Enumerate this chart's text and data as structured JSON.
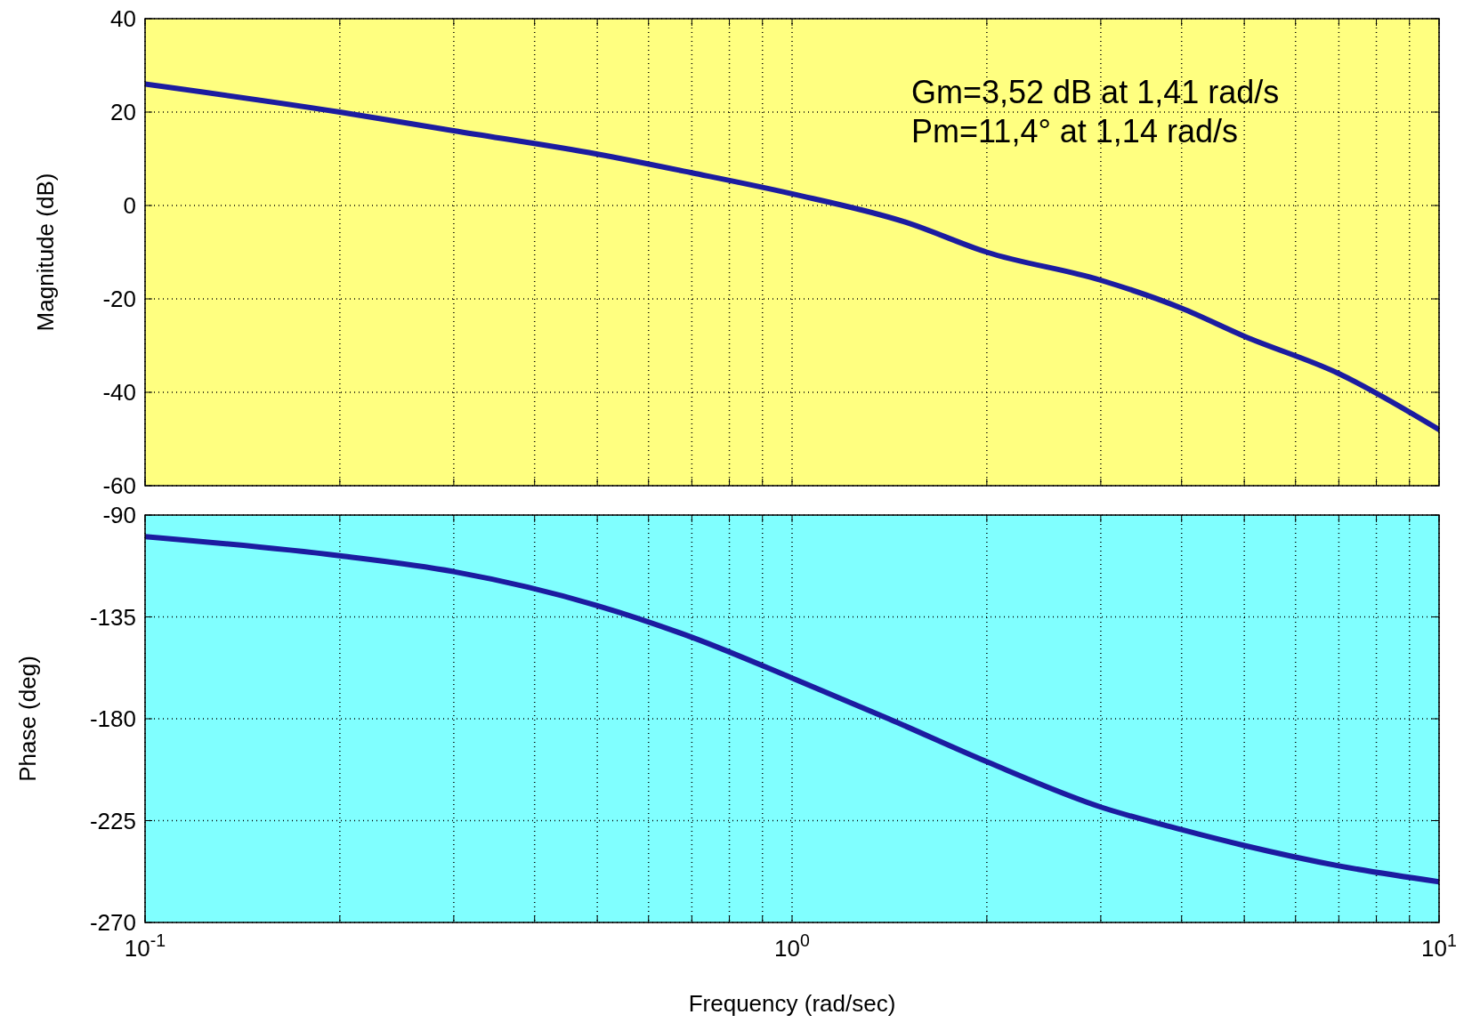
{
  "chart_data": [
    {
      "type": "line",
      "ylabel": "Magnitude (dB)",
      "log": "x",
      "grid": true,
      "tick_labels": "y",
      "xlim": [
        0.1,
        10
      ],
      "ylim": [
        -60,
        40
      ],
      "xticks": [
        0.1,
        {
          "value": 0.2,
          "label": null
        },
        {
          "value": 0.3,
          "label": null
        },
        {
          "value": 0.4,
          "label": null
        },
        {
          "value": 0.5,
          "label": null
        },
        {
          "value": 0.6,
          "label": null
        },
        {
          "value": 0.7,
          "label": null
        },
        {
          "value": 0.8,
          "label": null
        },
        {
          "value": 0.9,
          "label": null
        },
        1,
        {
          "value": 2,
          "label": null
        },
        {
          "value": 3,
          "label": null
        },
        {
          "value": 4,
          "label": null
        },
        {
          "value": 5,
          "label": null
        },
        {
          "value": 6,
          "label": null
        },
        {
          "value": 7,
          "label": null
        },
        {
          "value": 8,
          "label": null
        },
        {
          "value": 9,
          "label": null
        },
        10
      ],
      "yticks": [
        -60,
        -40,
        -20,
        0,
        20,
        40
      ],
      "annotations": [
        "Gm=3,52 dB at 1,41 rad/s",
        "Pm=11,4° at 1,14 rad/s"
      ],
      "series": [
        {
          "color": "#1c1ca0",
          "x": [
            0.1,
            0.2,
            0.3,
            0.5,
            0.7,
            1,
            1.5,
            2,
            3,
            4,
            5,
            7,
            10
          ],
          "values": [
            26,
            20,
            16,
            11,
            7,
            2.5,
            -3.6,
            -10,
            -16,
            -22,
            -28,
            -36,
            -48
          ]
        }
      ]
    },
    {
      "type": "line",
      "xlabel": "Frequency  (rad/sec)",
      "ylabel": "Phase (deg)",
      "log": "x",
      "grid": true,
      "xlim": [
        0.1,
        10
      ],
      "ylim": [
        -270,
        -90
      ],
      "xticks": [
        {
          "value": 0.1,
          "label": "10$^{-1}$"
        },
        {
          "value": 0.2,
          "label": null
        },
        {
          "value": 0.3,
          "label": null
        },
        {
          "value": 0.4,
          "label": null
        },
        {
          "value": 0.5,
          "label": null
        },
        {
          "value": 0.6,
          "label": null
        },
        {
          "value": 0.7,
          "label": null
        },
        {
          "value": 0.8,
          "label": null
        },
        {
          "value": 0.9,
          "label": null
        },
        {
          "value": 1,
          "label": "10$^{0}$"
        },
        {
          "value": 2,
          "label": null
        },
        {
          "value": 3,
          "label": null
        },
        {
          "value": 4,
          "label": null
        },
        {
          "value": 5,
          "label": null
        },
        {
          "value": 6,
          "label": null
        },
        {
          "value": 7,
          "label": null
        },
        {
          "value": 8,
          "label": null
        },
        {
          "value": 9,
          "label": null
        },
        {
          "value": 10,
          "label": "10$^{1}$"
        }
      ],
      "yticks": [
        -270,
        -225,
        -180,
        -135,
        -90
      ],
      "series": [
        {
          "color": "#1c1ca0",
          "x": [
            0.1,
            0.2,
            0.3,
            0.5,
            0.7,
            1,
            1.41,
            2,
            3,
            4,
            5,
            7,
            10
          ],
          "values": [
            -99.5,
            -108,
            -115,
            -130,
            -144,
            -162,
            -180,
            -199,
            -219,
            -229,
            -236,
            -245,
            -252
          ]
        }
      ]
    }
  ]
}
